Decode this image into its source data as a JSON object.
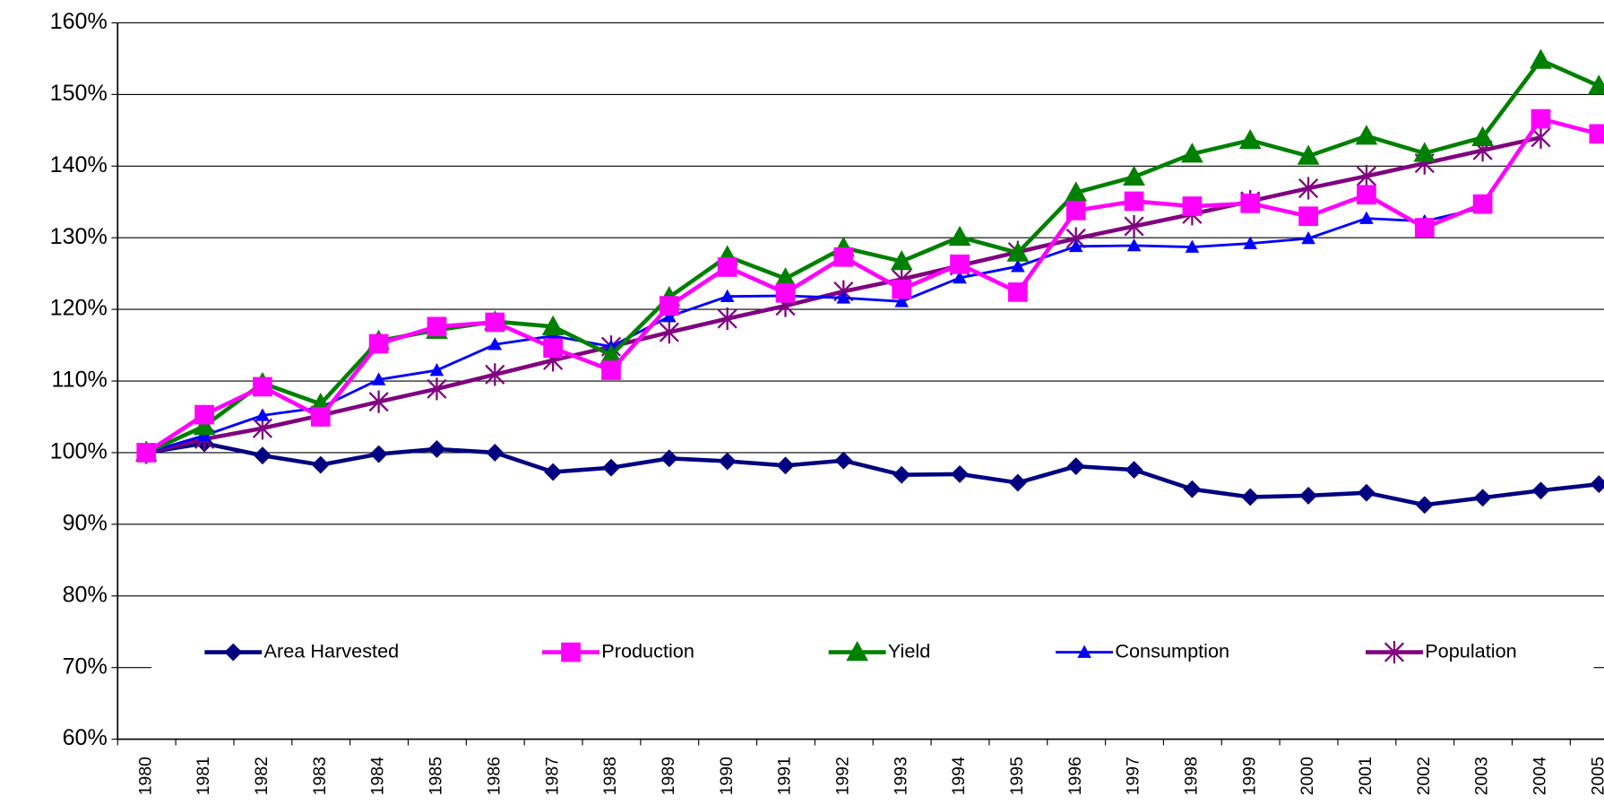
{
  "chart_data": {
    "type": "line",
    "categories": [
      "1980",
      "1981",
      "1982",
      "1983",
      "1984",
      "1985",
      "1986",
      "1987",
      "1988",
      "1989",
      "1990",
      "1991",
      "1992",
      "1993",
      "1994",
      "1995",
      "1996",
      "1997",
      "1998",
      "1999",
      "2000",
      "2001",
      "2002",
      "2003",
      "2004",
      "2005"
    ],
    "ylim": [
      60,
      160
    ],
    "yticks": [
      {
        "value": 60,
        "label": "60%"
      },
      {
        "value": 70,
        "label": "70%"
      },
      {
        "value": 80,
        "label": "80%"
      },
      {
        "value": 90,
        "label": "90%"
      },
      {
        "value": 100,
        "label": "100%"
      },
      {
        "value": 110,
        "label": "110%"
      },
      {
        "value": 120,
        "label": "120%"
      },
      {
        "value": 130,
        "label": "130%"
      },
      {
        "value": 140,
        "label": "140%"
      },
      {
        "value": 150,
        "label": "150%"
      },
      {
        "value": 160,
        "label": "160%"
      }
    ],
    "grid": true,
    "series": [
      {
        "name": "Area Harvested",
        "color": "#000080",
        "marker": "diamond",
        "values": [
          100,
          101.3,
          99.6,
          98.3,
          99.8,
          100.5,
          100,
          97.3,
          97.9,
          99.2,
          98.8,
          98.2,
          98.9,
          96.9,
          97,
          95.8,
          98.1,
          97.6,
          94.9,
          93.8,
          94,
          94.4,
          92.7,
          93.7,
          94.7,
          95.6
        ]
      },
      {
        "name": "Production",
        "color": "#ff00ff",
        "marker": "square",
        "values": [
          100,
          105.3,
          109.2,
          105,
          115.2,
          117.6,
          118.2,
          114.6,
          111.5,
          120.5,
          125.9,
          122.3,
          127.3,
          122.8,
          126.3,
          122.4,
          133.8,
          135.1,
          134.4,
          134.8,
          133,
          136,
          131.4,
          134.7,
          146.6,
          144.5
        ]
      },
      {
        "name": "Yield",
        "color": "#008000",
        "marker": "triangle",
        "values": [
          100,
          103.7,
          109.7,
          106.8,
          115.6,
          117.1,
          118.3,
          117.6,
          113.6,
          121.7,
          127.4,
          124.3,
          128.6,
          126.7,
          130.1,
          127.9,
          136.3,
          138.5,
          141.7,
          143.6,
          141.4,
          144.2,
          141.8,
          144,
          154.8,
          151.2
        ]
      },
      {
        "name": "Consumption",
        "color": "#0000ff",
        "marker": "small-triangle",
        "values": [
          100,
          102.4,
          105.2,
          106.3,
          110.2,
          111.5,
          115.1,
          116.3,
          114.8,
          119,
          121.8,
          121.9,
          121.6,
          121.1,
          124.4,
          126,
          128.8,
          128.9,
          128.7,
          129.2,
          129.9,
          132.7,
          132.3,
          134.2,
          null,
          null
        ]
      },
      {
        "name": "Population",
        "color": "#800080",
        "marker": "star",
        "values": [
          100,
          101.9,
          103.4,
          105.2,
          107.1,
          108.9,
          110.9,
          112.9,
          114.8,
          116.8,
          118.7,
          120.5,
          122.5,
          124.2,
          126.1,
          128,
          129.9,
          131.6,
          133.3,
          135.1,
          136.9,
          138.6,
          140.4,
          142.2,
          144,
          null
        ]
      }
    ]
  }
}
